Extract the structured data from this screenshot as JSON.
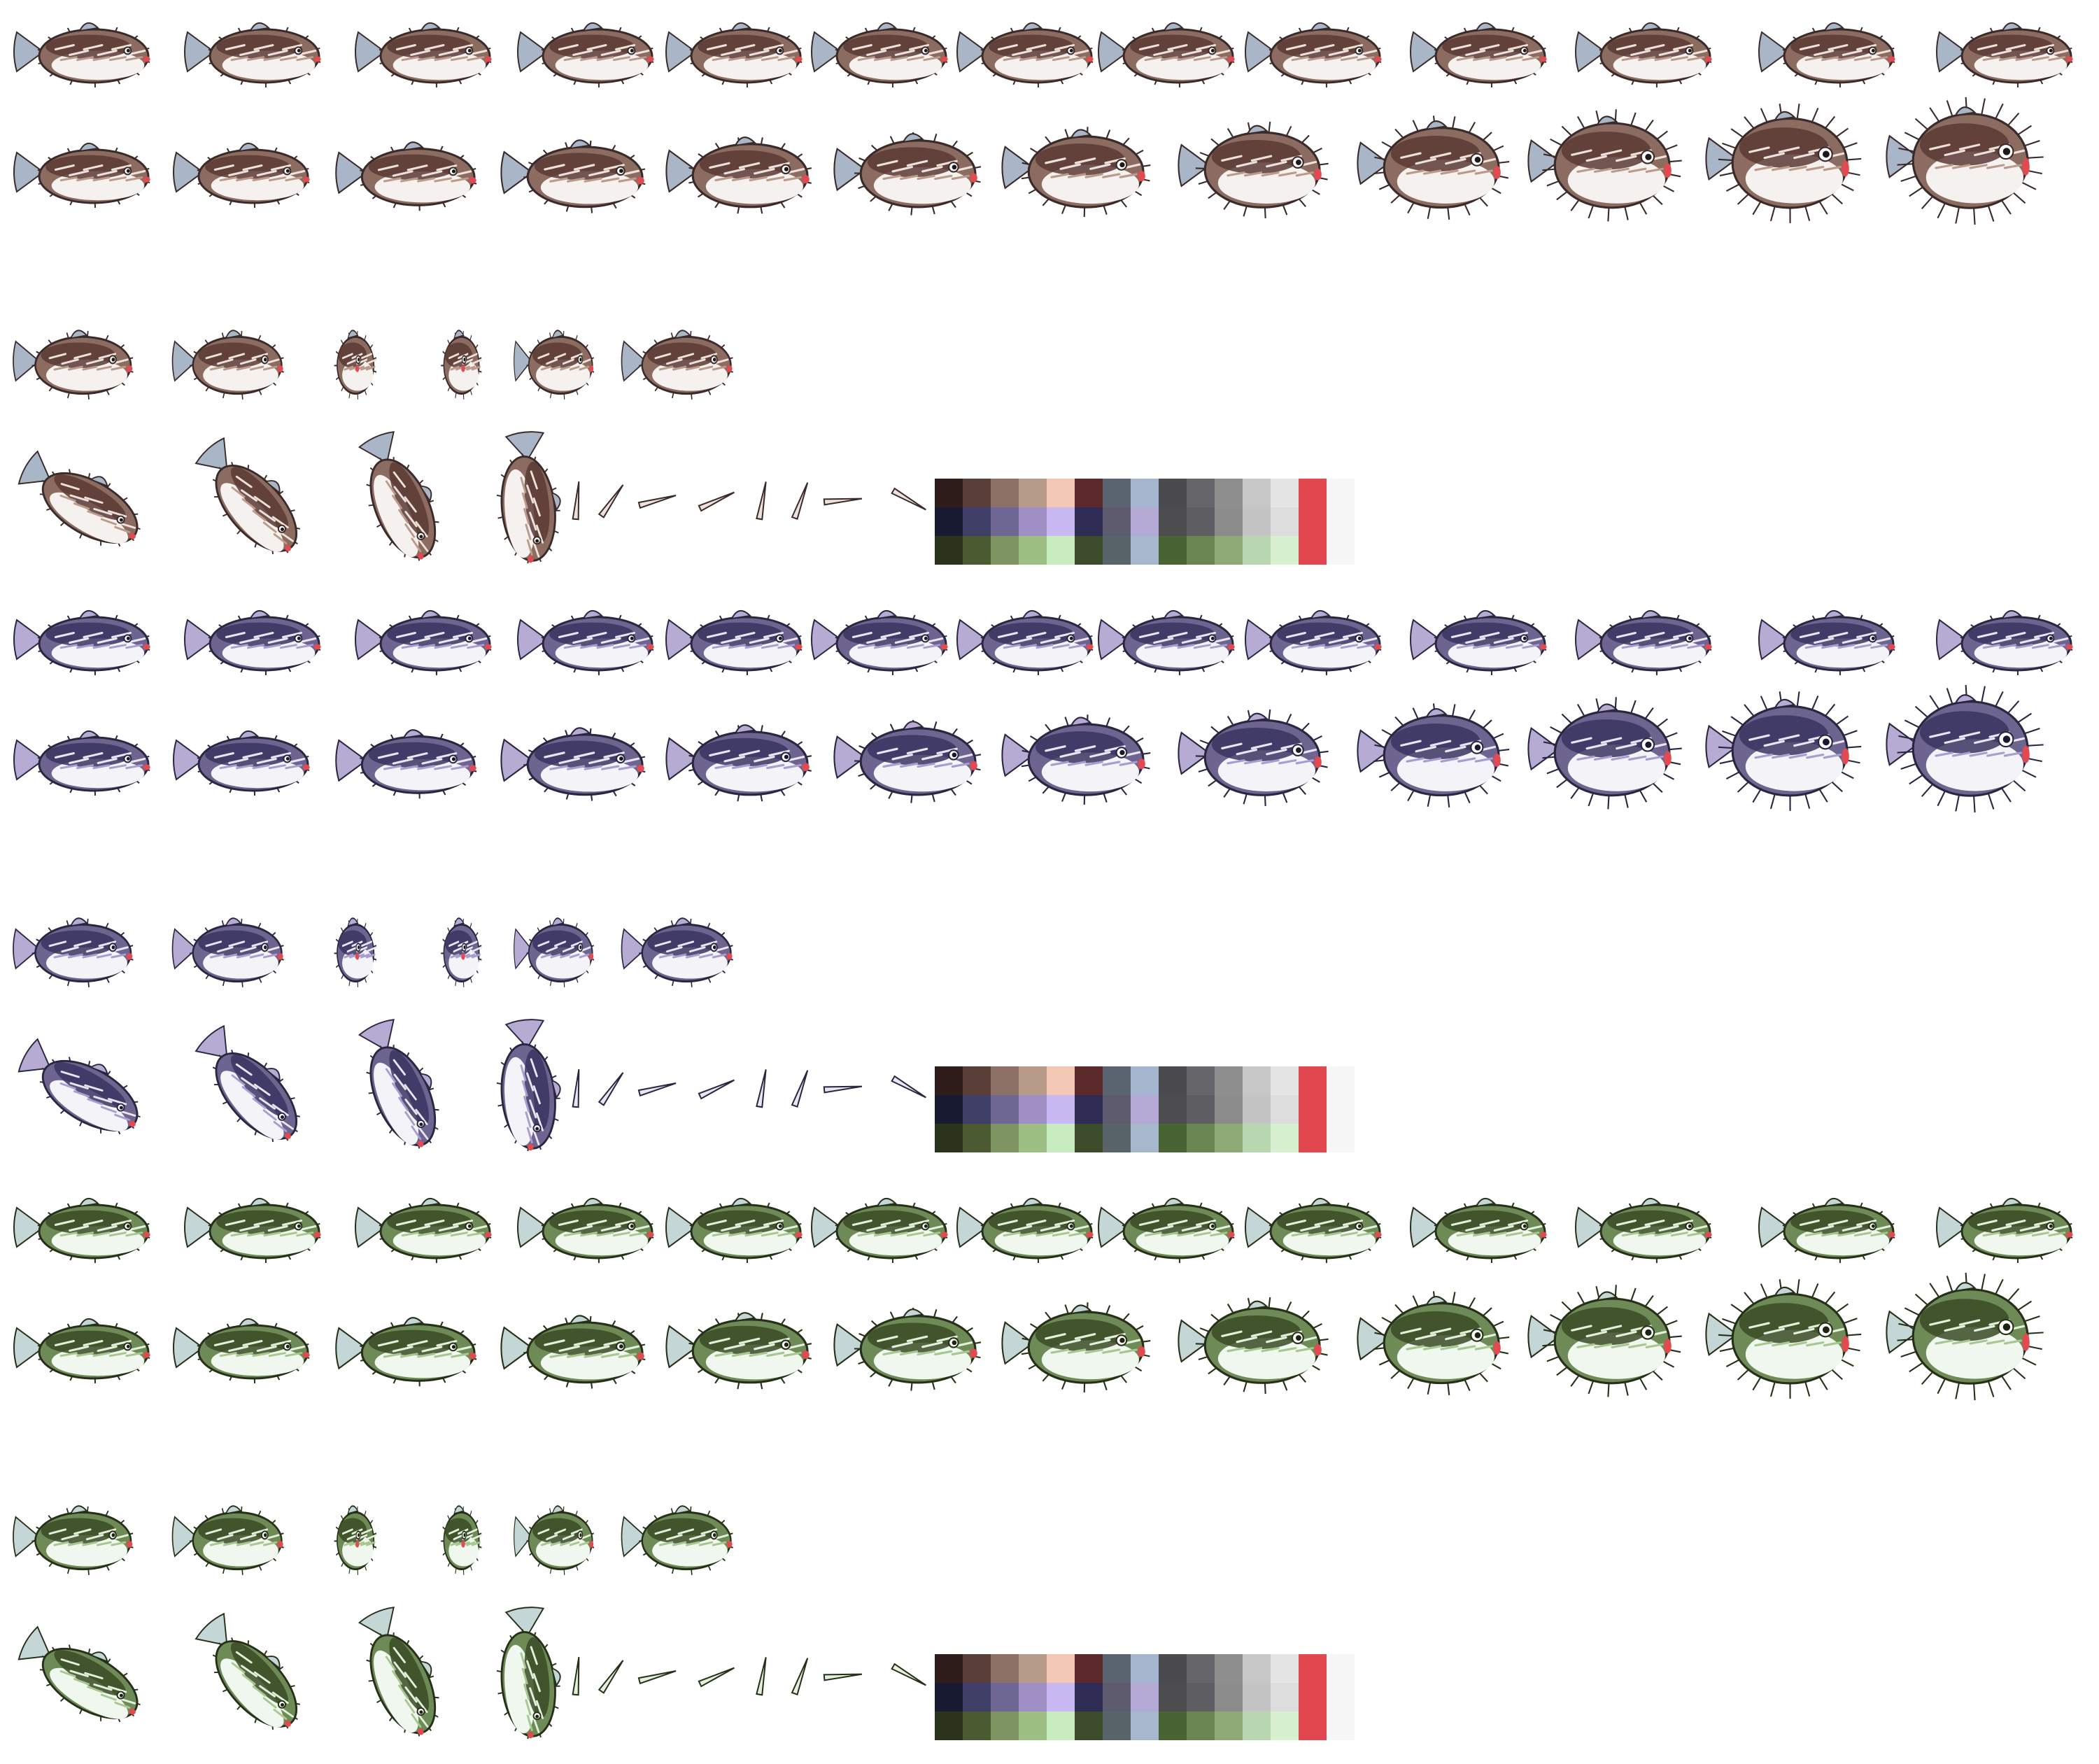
{
  "sheet": {
    "background": "#ffffff",
    "variants": [
      {
        "name": "brown",
        "colors": {
          "outline": "#3a2a2a",
          "dark": "#5a3a34",
          "mid": "#8c6c60",
          "light": "#bb9a8a",
          "belly": "#f4f1ee",
          "fin": "#a9b6c8",
          "lip": "#e24a52",
          "spine": "#ede2db",
          "eye": "#1f1a1a"
        },
        "palette": [
          "#2e1c1b",
          "#5a3e38",
          "#8d7066",
          "#b59b88",
          "#f3c8b5",
          "#5c2a2a",
          "#5a6470",
          "#a4b7cf",
          "#4b4a4f",
          "#66656a",
          "#8e8e8e",
          "#c7c7c7",
          "#e4e4e4",
          "#e2464f",
          "#f7f7f7",
          "#171a31",
          "#3f3e66",
          "#6e6693",
          "#9f8fc5",
          "#c9b9f2",
          "#2e2b54",
          "#5f5b6e",
          "#b4a8d4",
          "#4d4d50",
          "#5d5d62",
          "#8c8c8c",
          "#c4c4c4",
          "#dddddd",
          "#e2464f",
          "#f7f7f7",
          "#2c331b",
          "#4b5a30",
          "#7e9463",
          "#9dbf84",
          "#c8ecbf",
          "#3c4b2a",
          "#59646a",
          "#a6b8cc",
          "#4a6332",
          "#6b8653",
          "#8ea876",
          "#b8d6b0",
          "#d7f0cf",
          "#e2464f",
          "#f7f7f7"
        ]
      },
      {
        "name": "purple",
        "colors": {
          "outline": "#2a2640",
          "dark": "#3a3560",
          "mid": "#6d6590",
          "light": "#a99cd0",
          "belly": "#f4f3f8",
          "fin": "#b6abd2",
          "lip": "#e24a52",
          "spine": "#e9e5f2",
          "eye": "#1a1830"
        },
        "palette": [
          "#2e1c1b",
          "#5a3e38",
          "#8d7066",
          "#b59b88",
          "#f3c8b5",
          "#5c2a2a",
          "#5a6470",
          "#a4b7cf",
          "#4b4a4f",
          "#66656a",
          "#8e8e8e",
          "#c7c7c7",
          "#e4e4e4",
          "#e2464f",
          "#f7f7f7",
          "#171a31",
          "#3f3e66",
          "#6e6693",
          "#9f8fc5",
          "#c9b9f2",
          "#2e2b54",
          "#5f5b6e",
          "#b4a8d4",
          "#4d4d50",
          "#5d5d62",
          "#8c8c8c",
          "#c4c4c4",
          "#dddddd",
          "#e2464f",
          "#f7f7f7",
          "#2c331b",
          "#4b5a30",
          "#7e9463",
          "#9dbf84",
          "#c8ecbf",
          "#3c4b2a",
          "#59646a",
          "#a6b8cc",
          "#4a6332",
          "#6b8653",
          "#8ea876",
          "#b8d6b0",
          "#d7f0cf",
          "#e2464f",
          "#f7f7f7"
        ]
      },
      {
        "name": "green",
        "colors": {
          "outline": "#263018",
          "dark": "#3a4a24",
          "mid": "#6e8a56",
          "light": "#a6c890",
          "belly": "#f0f7ee",
          "fin": "#c4d6d6",
          "lip": "#e24a52",
          "spine": "#e3f0dc",
          "eye": "#1a2410"
        },
        "palette": [
          "#2e1c1b",
          "#5a3e38",
          "#8d7066",
          "#b59b88",
          "#f3c8b5",
          "#5c2a2a",
          "#5a6470",
          "#a4b7cf",
          "#4b4a4f",
          "#66656a",
          "#8e8e8e",
          "#c7c7c7",
          "#e4e4e4",
          "#e2464f",
          "#f7f7f7",
          "#171a31",
          "#3f3e66",
          "#6e6693",
          "#9f8fc5",
          "#c9b9f2",
          "#2e2b54",
          "#5f5b6e",
          "#b4a8d4",
          "#4d4d50",
          "#5d5d62",
          "#8c8c8c",
          "#c4c4c4",
          "#dddddd",
          "#e2464f",
          "#f7f7f7",
          "#2c331b",
          "#4b5a30",
          "#7e9463",
          "#9dbf84",
          "#c8ecbf",
          "#3c4b2a",
          "#59646a",
          "#a6b8cc",
          "#4a6332",
          "#6b8653",
          "#8ea876",
          "#b8d6b0",
          "#d7f0cf",
          "#e2464f",
          "#f7f7f7"
        ]
      }
    ],
    "rows": [
      {
        "kind": "swim",
        "frames": 13
      },
      {
        "kind": "inflate",
        "frames": 12
      },
      {
        "kind": "turn",
        "frames": 6
      },
      {
        "kind": "dive",
        "frames": 4,
        "spines": 8,
        "palette": true
      }
    ]
  }
}
